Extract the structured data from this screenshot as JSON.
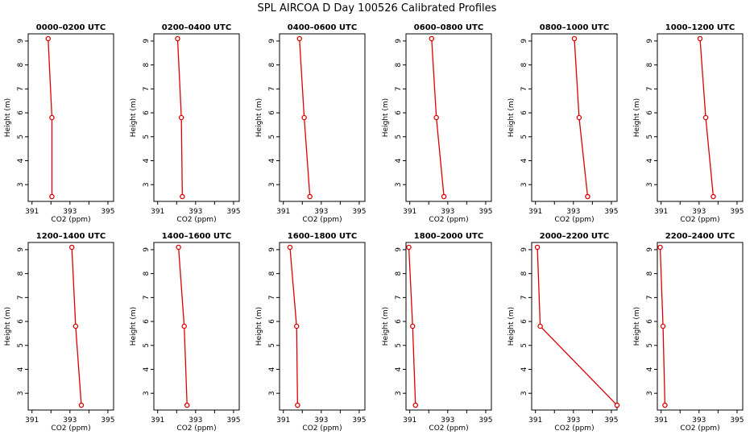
{
  "title": "SPL AIRCOA D  Day 100526  Calibrated Profiles",
  "colors": {
    "series": "#dd0000",
    "axis": "#000000",
    "background": "#ffffff"
  },
  "chart_data": [
    {
      "type": "line",
      "title": "0000–0200 UTC",
      "xlabel": "CO2 (ppm)",
      "ylabel": "Height (m)",
      "xlim": [
        390.8,
        395.3
      ],
      "ylim": [
        2.3,
        9.3
      ],
      "x_ticks": [
        391,
        392,
        393,
        394,
        395
      ],
      "x_tick_labels": [
        "391",
        "",
        "393",
        "",
        "395"
      ],
      "y_ticks": [
        3,
        4,
        5,
        6,
        7,
        8,
        9
      ],
      "series": [
        {
          "values": [
            [
              391.85,
              9.1
            ],
            [
              392.05,
              5.8
            ],
            [
              392.05,
              2.5
            ]
          ]
        }
      ]
    },
    {
      "type": "line",
      "title": "0200–0400 UTC",
      "xlabel": "CO2 (ppm)",
      "ylabel": "Height (m)",
      "xlim": [
        390.8,
        395.3
      ],
      "ylim": [
        2.3,
        9.3
      ],
      "x_ticks": [
        391,
        392,
        393,
        394,
        395
      ],
      "x_tick_labels": [
        "391",
        "",
        "393",
        "",
        "395"
      ],
      "y_ticks": [
        3,
        4,
        5,
        6,
        7,
        8,
        9
      ],
      "series": [
        {
          "values": [
            [
              392.05,
              9.1
            ],
            [
              392.25,
              5.8
            ],
            [
              392.3,
              2.5
            ]
          ]
        }
      ]
    },
    {
      "type": "line",
      "title": "0400–0600 UTC",
      "xlabel": "CO2 (ppm)",
      "ylabel": "Height (m)",
      "xlim": [
        390.8,
        395.3
      ],
      "ylim": [
        2.3,
        9.3
      ],
      "x_ticks": [
        391,
        392,
        393,
        394,
        395
      ],
      "x_tick_labels": [
        "391",
        "",
        "393",
        "",
        "395"
      ],
      "y_ticks": [
        3,
        4,
        5,
        6,
        7,
        8,
        9
      ],
      "series": [
        {
          "values": [
            [
              391.85,
              9.1
            ],
            [
              392.1,
              5.8
            ],
            [
              392.4,
              2.5
            ]
          ]
        }
      ]
    },
    {
      "type": "line",
      "title": "0600–0800 UTC",
      "xlabel": "CO2 (ppm)",
      "ylabel": "Height (m)",
      "xlim": [
        390.8,
        395.3
      ],
      "ylim": [
        2.3,
        9.3
      ],
      "x_ticks": [
        391,
        392,
        393,
        394,
        395
      ],
      "x_tick_labels": [
        "391",
        "",
        "393",
        "",
        "395"
      ],
      "y_ticks": [
        3,
        4,
        5,
        6,
        7,
        8,
        9
      ],
      "series": [
        {
          "values": [
            [
              392.15,
              9.1
            ],
            [
              392.4,
              5.8
            ],
            [
              392.8,
              2.5
            ]
          ]
        }
      ]
    },
    {
      "type": "line",
      "title": "0800–1000 UTC",
      "xlabel": "CO2 (ppm)",
      "ylabel": "Height (m)",
      "xlim": [
        390.8,
        395.3
      ],
      "ylim": [
        2.3,
        9.3
      ],
      "x_ticks": [
        391,
        392,
        393,
        394,
        395
      ],
      "x_tick_labels": [
        "391",
        "",
        "393",
        "",
        "395"
      ],
      "y_ticks": [
        3,
        4,
        5,
        6,
        7,
        8,
        9
      ],
      "series": [
        {
          "values": [
            [
              393.05,
              9.1
            ],
            [
              393.3,
              5.8
            ],
            [
              393.75,
              2.5
            ]
          ]
        }
      ]
    },
    {
      "type": "line",
      "title": "1000–1200 UTC",
      "xlabel": "CO2 (ppm)",
      "ylabel": "Height (m)",
      "xlim": [
        390.8,
        395.3
      ],
      "ylim": [
        2.3,
        9.3
      ],
      "x_ticks": [
        391,
        392,
        393,
        394,
        395
      ],
      "x_tick_labels": [
        "391",
        "",
        "393",
        "",
        "395"
      ],
      "y_ticks": [
        3,
        4,
        5,
        6,
        7,
        8,
        9
      ],
      "series": [
        {
          "values": [
            [
              393.05,
              9.1
            ],
            [
              393.35,
              5.8
            ],
            [
              393.75,
              2.5
            ]
          ]
        }
      ]
    },
    {
      "type": "line",
      "title": "1200–1400 UTC",
      "xlabel": "CO2 (ppm)",
      "ylabel": "Height (m)",
      "xlim": [
        390.8,
        395.3
      ],
      "ylim": [
        2.3,
        9.3
      ],
      "x_ticks": [
        391,
        392,
        393,
        394,
        395
      ],
      "x_tick_labels": [
        "391",
        "",
        "393",
        "",
        "395"
      ],
      "y_ticks": [
        3,
        4,
        5,
        6,
        7,
        8,
        9
      ],
      "series": [
        {
          "values": [
            [
              393.1,
              9.1
            ],
            [
              393.3,
              5.8
            ],
            [
              393.6,
              2.5
            ]
          ]
        }
      ]
    },
    {
      "type": "line",
      "title": "1400–1600 UTC",
      "xlabel": "CO2 (ppm)",
      "ylabel": "Height (m)",
      "xlim": [
        390.8,
        395.3
      ],
      "ylim": [
        2.3,
        9.3
      ],
      "x_ticks": [
        391,
        392,
        393,
        394,
        395
      ],
      "x_tick_labels": [
        "391",
        "",
        "393",
        "",
        "395"
      ],
      "y_ticks": [
        3,
        4,
        5,
        6,
        7,
        8,
        9
      ],
      "series": [
        {
          "values": [
            [
              392.1,
              9.1
            ],
            [
              392.4,
              5.8
            ],
            [
              392.55,
              2.5
            ]
          ]
        }
      ]
    },
    {
      "type": "line",
      "title": "1600–1800 UTC",
      "xlabel": "CO2 (ppm)",
      "ylabel": "Height (m)",
      "xlim": [
        390.8,
        395.3
      ],
      "ylim": [
        2.3,
        9.3
      ],
      "x_ticks": [
        391,
        392,
        393,
        394,
        395
      ],
      "x_tick_labels": [
        "391",
        "",
        "393",
        "",
        "395"
      ],
      "y_ticks": [
        3,
        4,
        5,
        6,
        7,
        8,
        9
      ],
      "series": [
        {
          "values": [
            [
              391.35,
              9.1
            ],
            [
              391.7,
              5.8
            ],
            [
              391.75,
              2.5
            ]
          ]
        }
      ]
    },
    {
      "type": "line",
      "title": "1800–2000 UTC",
      "xlabel": "CO2 (ppm)",
      "ylabel": "Height (m)",
      "xlim": [
        390.8,
        395.3
      ],
      "ylim": [
        2.3,
        9.3
      ],
      "x_ticks": [
        391,
        392,
        393,
        394,
        395
      ],
      "x_tick_labels": [
        "391",
        "",
        "393",
        "",
        "395"
      ],
      "y_ticks": [
        3,
        4,
        5,
        6,
        7,
        8,
        9
      ],
      "series": [
        {
          "values": [
            [
              390.95,
              9.1
            ],
            [
              391.15,
              5.8
            ],
            [
              391.3,
              2.5
            ]
          ]
        }
      ]
    },
    {
      "type": "line",
      "title": "2000–2200 UTC",
      "xlabel": "CO2 (ppm)",
      "ylabel": "Height (m)",
      "xlim": [
        390.8,
        395.3
      ],
      "ylim": [
        2.3,
        9.3
      ],
      "x_ticks": [
        391,
        392,
        393,
        394,
        395
      ],
      "x_tick_labels": [
        "391",
        "",
        "393",
        "",
        "395"
      ],
      "y_ticks": [
        3,
        4,
        5,
        6,
        7,
        8,
        9
      ],
      "series": [
        {
          "values": [
            [
              391.1,
              9.1
            ],
            [
              391.25,
              5.8
            ],
            [
              395.3,
              2.5
            ]
          ]
        }
      ]
    },
    {
      "type": "line",
      "title": "2200–2400 UTC",
      "xlabel": "CO2 (ppm)",
      "ylabel": "Height (m)",
      "xlim": [
        390.8,
        395.3
      ],
      "ylim": [
        2.3,
        9.3
      ],
      "x_ticks": [
        391,
        392,
        393,
        394,
        395
      ],
      "x_tick_labels": [
        "391",
        "",
        "393",
        "",
        "395"
      ],
      "y_ticks": [
        3,
        4,
        5,
        6,
        7,
        8,
        9
      ],
      "series": [
        {
          "values": [
            [
              390.95,
              9.1
            ],
            [
              391.1,
              5.8
            ],
            [
              391.2,
              2.5
            ]
          ]
        }
      ]
    }
  ]
}
